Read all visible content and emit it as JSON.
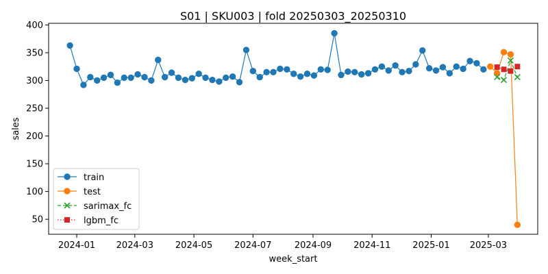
{
  "chart_data": {
    "type": "line",
    "title": "S01 | SKU003 | fold 20250303_20250310",
    "xlabel": "week_start",
    "ylabel": "sales",
    "x_ticks": [
      "2024-01",
      "2024-03",
      "2024-05",
      "2024-07",
      "2024-09",
      "2024-11",
      "2025-01",
      "2025-03"
    ],
    "y_ticks": [
      50,
      100,
      150,
      200,
      250,
      300,
      350,
      400
    ],
    "xlim": [
      "2023-12-03",
      "2025-04-21"
    ],
    "ylim": [
      23,
      403
    ],
    "legend": {
      "placement": "lower-left",
      "entries": [
        "train",
        "test",
        "sarimax_fc",
        "lgbm_fc"
      ]
    },
    "series": [
      {
        "name": "train",
        "color": "#1f77b4",
        "marker": "circle",
        "line": "solid",
        "x": [
          "2023-12-25",
          "2024-01-01",
          "2024-01-08",
          "2024-01-15",
          "2024-01-22",
          "2024-01-29",
          "2024-02-05",
          "2024-02-12",
          "2024-02-19",
          "2024-02-26",
          "2024-03-04",
          "2024-03-11",
          "2024-03-18",
          "2024-03-25",
          "2024-04-01",
          "2024-04-08",
          "2024-04-15",
          "2024-04-22",
          "2024-04-29",
          "2024-05-06",
          "2024-05-13",
          "2024-05-20",
          "2024-05-27",
          "2024-06-03",
          "2024-06-10",
          "2024-06-17",
          "2024-06-24",
          "2024-07-01",
          "2024-07-08",
          "2024-07-15",
          "2024-07-22",
          "2024-07-29",
          "2024-08-05",
          "2024-08-12",
          "2024-08-19",
          "2024-08-26",
          "2024-09-02",
          "2024-09-09",
          "2024-09-16",
          "2024-09-23",
          "2024-09-30",
          "2024-10-07",
          "2024-10-14",
          "2024-10-21",
          "2024-10-28",
          "2024-11-04",
          "2024-11-11",
          "2024-11-18",
          "2024-11-25",
          "2024-12-02",
          "2024-12-09",
          "2024-12-16",
          "2024-12-23",
          "2024-12-30",
          "2025-01-06",
          "2025-01-13",
          "2025-01-20",
          "2025-01-27",
          "2025-02-03",
          "2025-02-10",
          "2025-02-17",
          "2025-02-24"
        ],
        "values": [
          363,
          321,
          292,
          306,
          300,
          305,
          310,
          296,
          305,
          305,
          311,
          306,
          300,
          337,
          306,
          314,
          305,
          301,
          304,
          312,
          305,
          301,
          298,
          305,
          307,
          297,
          355,
          317,
          306,
          315,
          315,
          321,
          320,
          312,
          307,
          312,
          309,
          320,
          319,
          385,
          310,
          316,
          315,
          311,
          313,
          320,
          325,
          318,
          327,
          315,
          317,
          329,
          354,
          322,
          318,
          324,
          313,
          325,
          321,
          335,
          331,
          320
        ]
      },
      {
        "name": "test",
        "color": "#ff7f0e",
        "marker": "circle",
        "line": "solid",
        "x": [
          "2025-03-03",
          "2025-03-10",
          "2025-03-17",
          "2025-03-24",
          "2025-03-31"
        ],
        "values": [
          325,
          313,
          351,
          347,
          40
        ]
      },
      {
        "name": "sarimax_fc",
        "color": "#2ca02c",
        "marker": "x",
        "line": "dashed",
        "x": [
          "2025-03-10",
          "2025-03-17",
          "2025-03-24",
          "2025-03-31"
        ],
        "values": [
          306,
          301,
          336,
          306
        ]
      },
      {
        "name": "lgbm_fc",
        "color": "#d62728",
        "marker": "square",
        "line": "dotted",
        "x": [
          "2025-03-10",
          "2025-03-17",
          "2025-03-24",
          "2025-03-31"
        ],
        "values": [
          324,
          320,
          317,
          325
        ]
      }
    ]
  }
}
